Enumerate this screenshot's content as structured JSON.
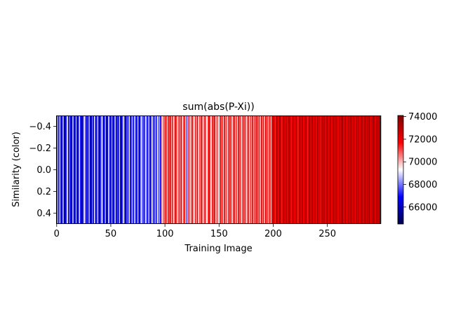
{
  "chart_data": {
    "type": "heatmap",
    "title": "sum(abs(P-Xi))",
    "xlabel": "Training Image",
    "ylabel": "Similarity (color)",
    "xlim": [
      -0.5,
      299.5
    ],
    "ylim": [
      0.5,
      -0.5
    ],
    "xticks": [
      0,
      50,
      100,
      150,
      200,
      250
    ],
    "yticks": [
      -0.4,
      -0.2,
      0.0,
      0.2,
      0.4
    ],
    "ytick_labels": [
      "−0.4",
      "−0.2",
      "0.0",
      "0.2",
      "0.4"
    ],
    "colorbar": {
      "colormap": "seismic",
      "vmin": 64500,
      "vmax": 74100,
      "ticks": [
        66000,
        68000,
        70000,
        72000,
        74000
      ]
    },
    "n_columns": 300,
    "values": [
      66000,
      68500,
      66200,
      69000,
      65800,
      67000,
      68800,
      66100,
      65900,
      67500,
      69200,
      66000,
      68000,
      66500,
      65700,
      68900,
      67000,
      66300,
      68500,
      65900,
      66800,
      69000,
      67200,
      66000,
      65800,
      68300,
      69500,
      66000,
      67500,
      66400,
      68700,
      66100,
      65900,
      67900,
      66500,
      69100,
      66000,
      67200,
      68800,
      65700,
      66300,
      67800,
      69300,
      66000,
      67000,
      68500,
      65900,
      66600,
      69000,
      67300,
      66000,
      68400,
      65800,
      67100,
      68900,
      66200,
      67500,
      66000,
      68700,
      66400,
      65900,
      67800,
      69200,
      66100,
      65700,
      68000,
      67000,
      69400,
      66200,
      67600,
      68300,
      66800,
      69000,
      67400,
      66600,
      68700,
      67000,
      66300,
      69200,
      68000,
      67700,
      66800,
      69000,
      68100,
      66900,
      68700,
      67300,
      66400,
      69400,
      67800,
      67000,
      68600,
      66500,
      69100,
      67900,
      68300,
      66700,
      70300,
      69600,
      71200,
      70600,
      72200,
      69800,
      71500,
      70900,
      72600,
      70100,
      71800,
      69300,
      71000,
      72400,
      70500,
      69700,
      71600,
      70200,
      72800,
      69400,
      70800,
      71900,
      69900,
      67800,
      68500,
      71200,
      70400,
      69800,
      72100,
      70700,
      69300,
      71500,
      70100,
      72300,
      69600,
      71000,
      70600,
      72600,
      69900,
      70300,
      71800,
      70000,
      69400,
      71300,
      72500,
      70200,
      69700,
      71900,
      70800,
      72800,
      69500,
      71100,
      70400,
      69300,
      72000,
      70700,
      71400,
      69800,
      72700,
      70300,
      71000,
      69700,
      72200,
      70500,
      71600,
      69600,
      70900,
      72400,
      70100,
      71300,
      69900,
      72500,
      70700,
      71100,
      69500,
      72000,
      70300,
      71700,
      69800,
      70500,
      72300,
      69700,
      71200,
      70400,
      72600,
      69900,
      71400,
      70800,
      72100,
      70200,
      71800,
      69600,
      72700,
      70600,
      71500,
      69800,
      72400,
      70900,
      71100,
      70300,
      72200,
      69900,
      71700,
      73500,
      72200,
      71400,
      73200,
      72600,
      71800,
      73600,
      72300,
      71500,
      73000,
      72800,
      72100,
      73400,
      71700,
      72900,
      73300,
      72000,
      71600,
      73100,
      72500,
      71900,
      73400,
      72200,
      71400,
      73000,
      72700,
      72000,
      73500,
      71800,
      72600,
      73200,
      72300,
      71500,
      73300,
      72800,
      71900,
      73600,
      72100,
      72500,
      73000,
      71700,
      73400,
      72200,
      72900,
      71600,
      73100,
      72400,
      73500,
      71800,
      72700,
      73200,
      72000,
      72600,
      73400,
      71900,
      72800,
      73300,
      72100,
      73000,
      72500,
      71800,
      73400,
      72200,
      72900,
      73600,
      72000,
      72700,
      73100,
      71700,
      73500,
      72300,
      72800,
      73300,
      72100,
      73000,
      72600,
      71900,
      73400,
      72400,
      73200,
      72000,
      72700,
      73500,
      71800,
      72900,
      73300,
      72200,
      73100,
      72500,
      73400,
      71900,
      73000,
      72700,
      73600,
      72100,
      72800,
      73200,
      72400,
      73500,
      72900
    ]
  }
}
